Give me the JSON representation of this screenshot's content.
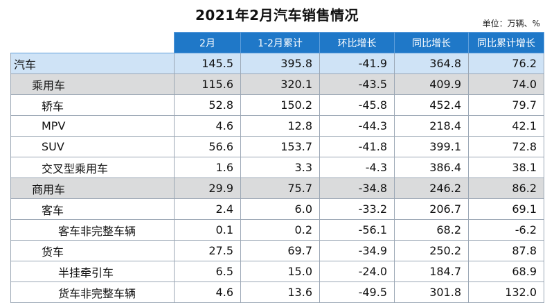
{
  "title": "2021年2月汽车销售情况",
  "unit": "单位：万辆、%",
  "columns": [
    "",
    "2月",
    "1-2月累计",
    "环比增长",
    "同比增长",
    "同比累计增长"
  ],
  "rows": [
    {
      "name": "汽车",
      "values": [
        "145.5",
        "395.8",
        "-41.9",
        "364.8",
        "76.2"
      ]
    },
    {
      "name": "乘用车",
      "values": [
        "115.6",
        "320.1",
        "-43.5",
        "409.9",
        "74.0"
      ]
    },
    {
      "name": "轿车",
      "values": [
        "52.8",
        "150.2",
        "-45.8",
        "452.4",
        "79.7"
      ]
    },
    {
      "name": "MPV",
      "values": [
        "4.6",
        "12.8",
        "-44.3",
        "218.4",
        "42.1"
      ]
    },
    {
      "name": "SUV",
      "values": [
        "56.6",
        "153.7",
        "-41.8",
        "399.1",
        "72.8"
      ]
    },
    {
      "name": "交叉型乘用车",
      "values": [
        "1.6",
        "3.3",
        "-4.3",
        "386.4",
        "38.1"
      ]
    },
    {
      "name": "商用车",
      "values": [
        "29.9",
        "75.7",
        "-34.8",
        "246.2",
        "86.2"
      ]
    },
    {
      "name": "客车",
      "values": [
        "2.4",
        "6.0",
        "-33.2",
        "206.7",
        "69.1"
      ]
    },
    {
      "name": "客车非完整车辆",
      "values": [
        "0.1",
        "0.2",
        "-56.1",
        "68.2",
        "-6.2"
      ]
    },
    {
      "name": "货车",
      "values": [
        "27.5",
        "69.7",
        "-34.9",
        "250.2",
        "87.8"
      ]
    },
    {
      "name": "半挂牵引车",
      "values": [
        "6.5",
        "15.0",
        "-24.0",
        "184.7",
        "68.9"
      ]
    },
    {
      "name": "货车非完整车辆",
      "values": [
        "4.6",
        "13.6",
        "-49.5",
        "301.8",
        "132.0"
      ]
    }
  ],
  "colors": {
    "header_bg": "#1f78c8",
    "highlight_blue": "#cfe3f6",
    "highlight_gray": "#dadbdc"
  }
}
